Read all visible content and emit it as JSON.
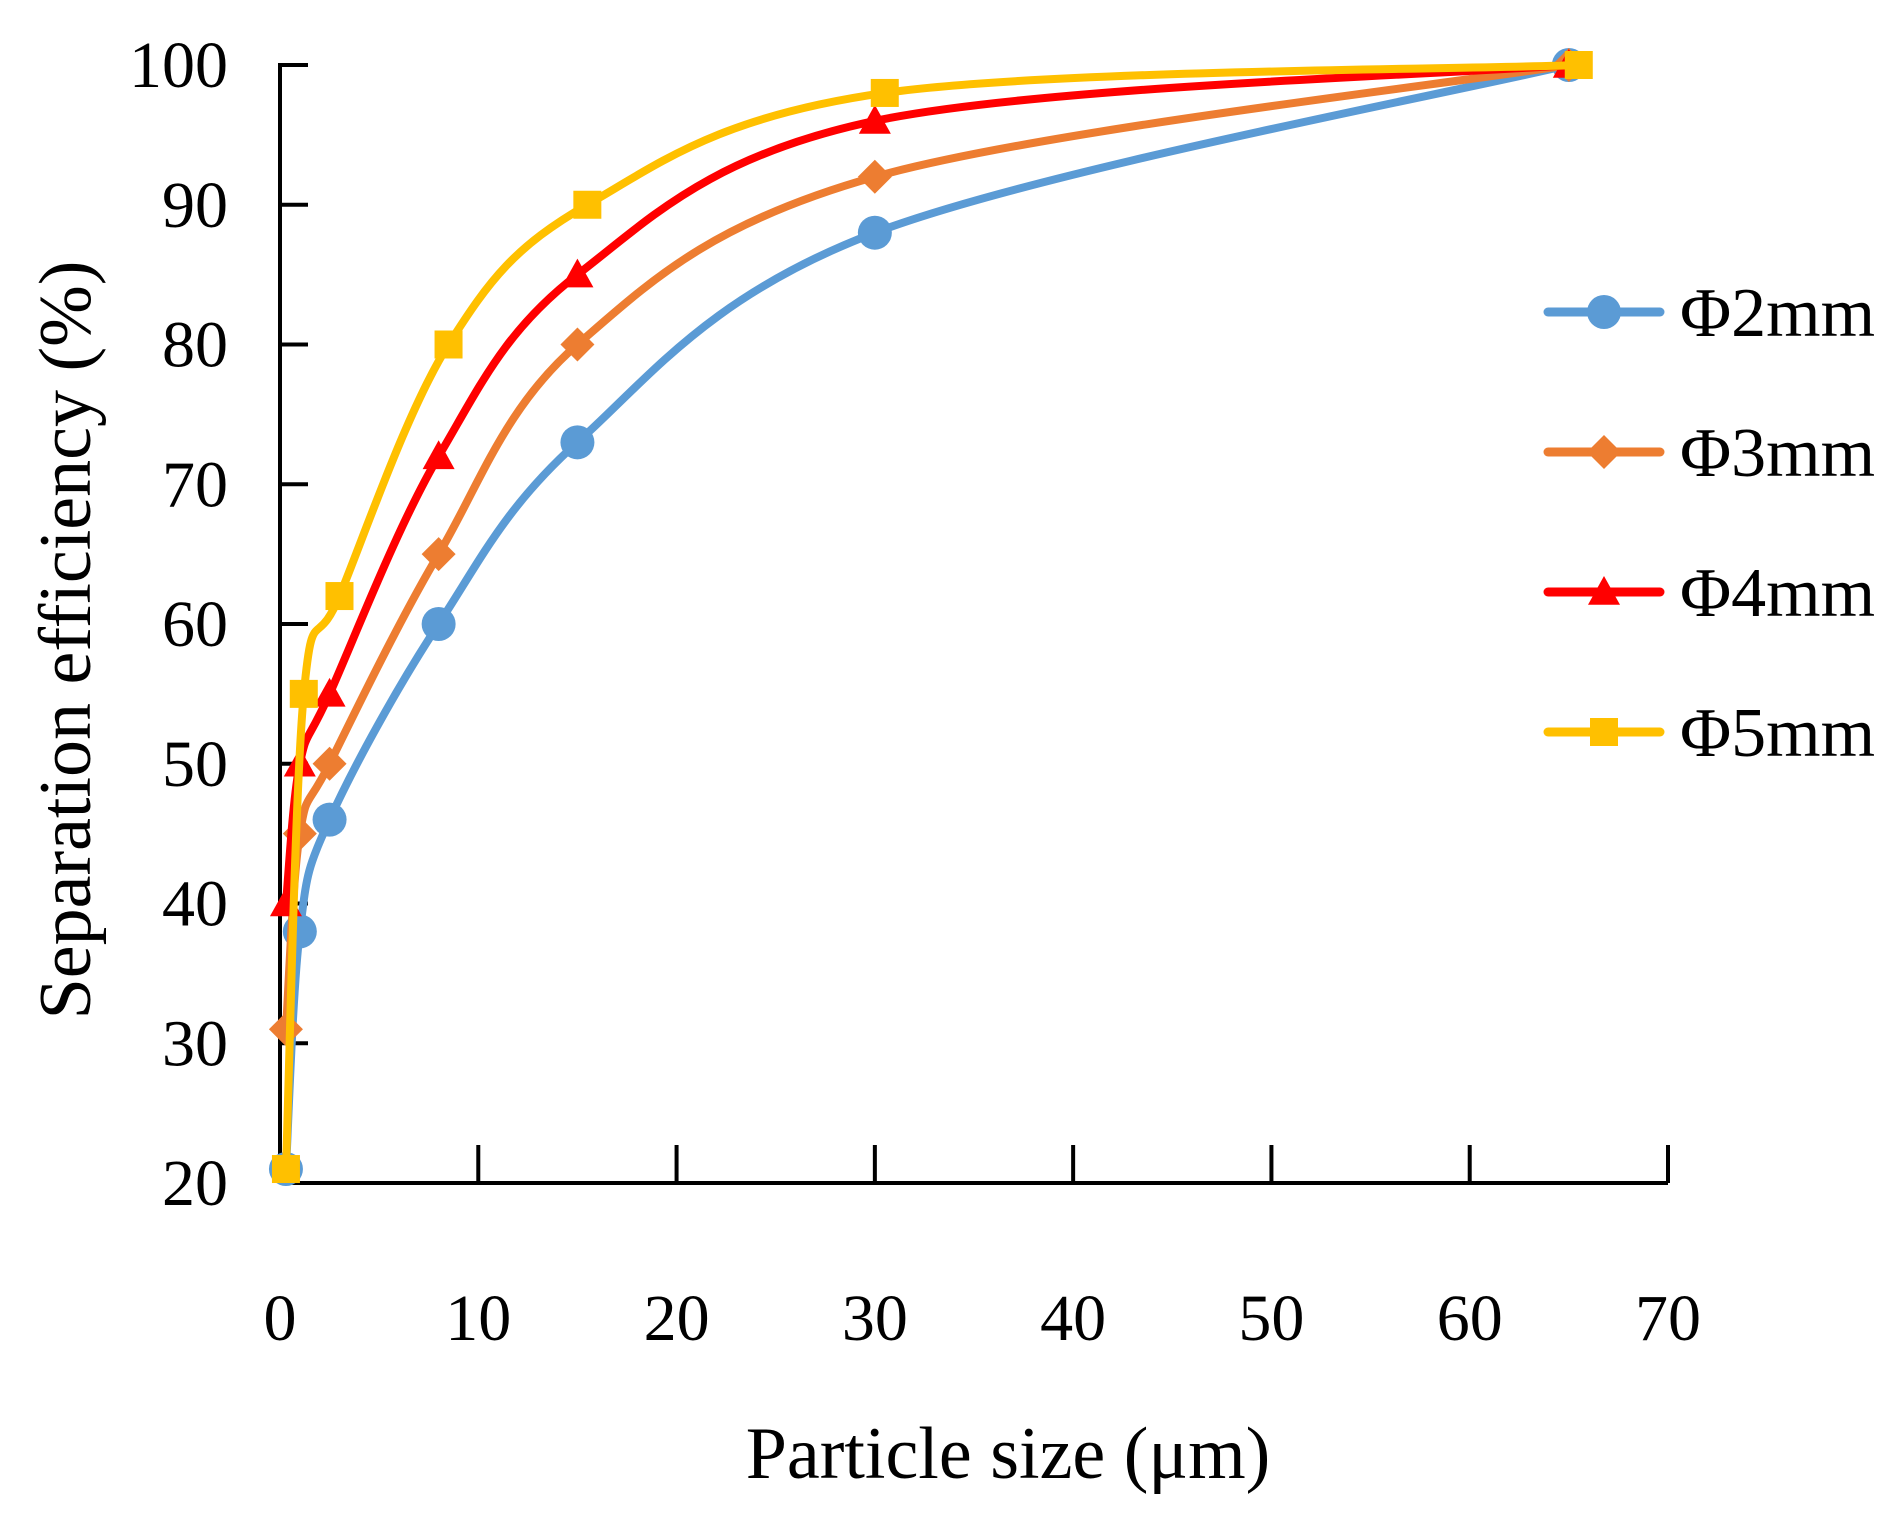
{
  "chart_data": {
    "type": "line",
    "title": "",
    "xlabel": "Particle size (μm)",
    "ylabel": "Separation efficiency (%)",
    "xlim": [
      0,
      70
    ],
    "ylim": [
      20,
      100
    ],
    "xticks": [
      0,
      10,
      20,
      30,
      40,
      50,
      60,
      70
    ],
    "yticks": [
      20,
      30,
      40,
      50,
      60,
      70,
      80,
      90,
      100
    ],
    "grid": false,
    "legend_position": "right",
    "series": [
      {
        "name": "Φ2mm",
        "color": "#5B9BD5",
        "marker": "circle",
        "x": [
          0.3,
          1,
          2.5,
          8,
          15,
          30,
          65
        ],
        "y": [
          21,
          38,
          46,
          60,
          73,
          88,
          100
        ]
      },
      {
        "name": "Φ3mm",
        "color": "#ED7D31",
        "marker": "diamond",
        "x": [
          0.3,
          1,
          2.5,
          8,
          15,
          30,
          65
        ],
        "y": [
          31,
          45,
          50,
          65,
          80,
          92,
          100
        ]
      },
      {
        "name": "Φ4mm",
        "color": "#FF0000",
        "marker": "triangle",
        "x": [
          0.3,
          1,
          2.5,
          8,
          15,
          30,
          65
        ],
        "y": [
          40,
          50,
          55,
          72,
          85,
          96,
          100
        ]
      },
      {
        "name": "Φ5mm",
        "color": "#FFC000",
        "marker": "square",
        "x": [
          0.3,
          1.2,
          3,
          8.5,
          15.5,
          30.5,
          65.5
        ],
        "y": [
          21,
          55,
          62,
          80,
          90,
          98,
          100
        ]
      }
    ]
  }
}
